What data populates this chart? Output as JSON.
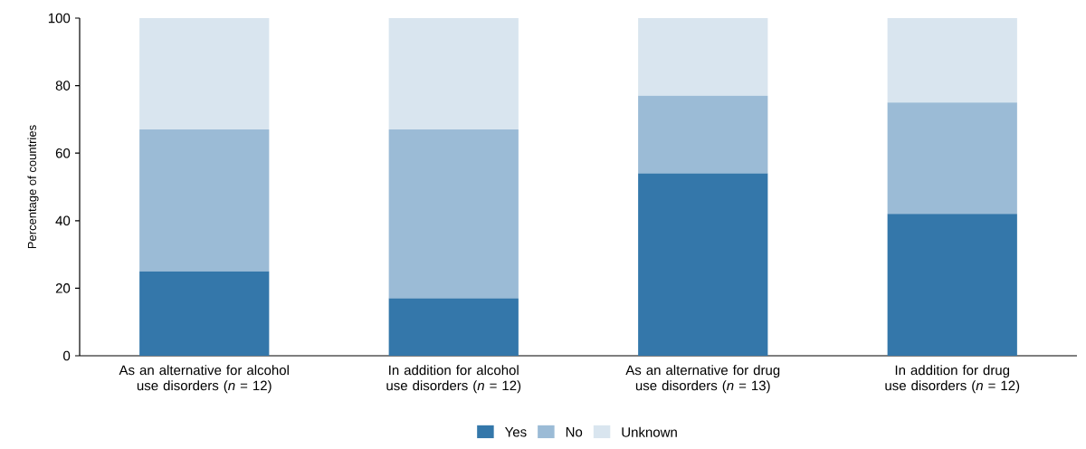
{
  "chart_data": {
    "type": "bar",
    "stacked": true,
    "ylabel": "Percentage of countries",
    "categories": [
      "As an alternative for alcohol use disorders (*n* = 12)",
      "In addition for alcohol use disorders (*n* = 12)",
      "As an alternative for drug use disorders (*n* = 13)",
      "In addition for drug use disorders (*n* = 12)"
    ],
    "series": [
      {
        "name": "Yes",
        "color": "#3477aa",
        "values": [
          25,
          17,
          54,
          42
        ]
      },
      {
        "name": "No",
        "color": "#9bbbd6",
        "values": [
          42,
          50,
          23,
          33
        ]
      },
      {
        "name": "Unknown",
        "color": "#d9e5ef",
        "values": [
          33,
          33,
          23,
          25
        ]
      }
    ],
    "ylim": [
      0,
      100
    ],
    "yticks": [
      0,
      20,
      40,
      60,
      80,
      100
    ],
    "legend": "bottom"
  }
}
